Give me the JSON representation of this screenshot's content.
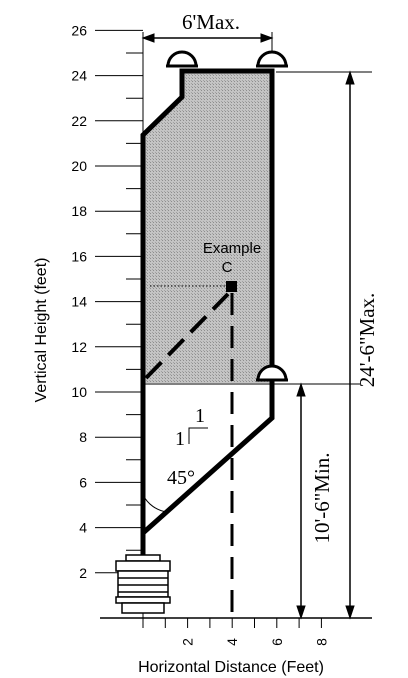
{
  "diagram": {
    "y_axis": {
      "label": "Vertical Height (feet)",
      "ticks": [
        "2",
        "4",
        "6",
        "8",
        "10",
        "12",
        "14",
        "16",
        "18",
        "20",
        "22",
        "24",
        "26"
      ],
      "range_ft": [
        0,
        26
      ]
    },
    "x_axis": {
      "label": "Horizontal Distance (Feet)",
      "ticks": [
        "2",
        "4",
        "6",
        "8"
      ],
      "range_ft": [
        0,
        8
      ]
    },
    "dimensions": {
      "width_max": "6'Max.",
      "height_max": "24'-6\"Max.",
      "min_height": "10'-6\"Min."
    },
    "slope": {
      "rise": "1",
      "run": "1",
      "angle": "45°"
    },
    "example": {
      "label": "Example",
      "point": "C",
      "x_ft": 4,
      "y_ft": 15
    },
    "colors": {
      "shade": "#bdbdbd",
      "line": "#000000"
    }
  }
}
